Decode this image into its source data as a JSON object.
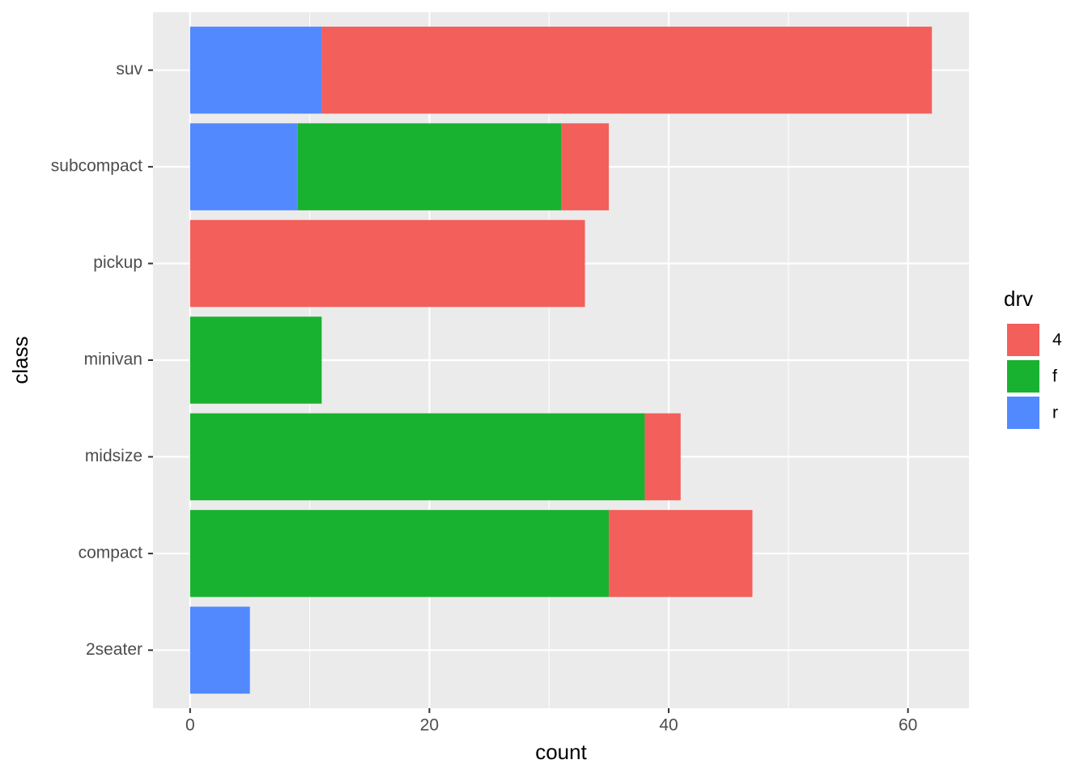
{
  "chart_data": {
    "type": "bar",
    "orientation": "horizontal",
    "stacked": true,
    "x_label": "count",
    "y_label": "class",
    "legend_title": "drv",
    "legend_position": "right",
    "categories": [
      "2seater",
      "compact",
      "midsize",
      "minivan",
      "pickup",
      "subcompact",
      "suv"
    ],
    "series": [
      {
        "name": "4",
        "color": "#F35F5B",
        "values": [
          0,
          12,
          3,
          0,
          33,
          4,
          51
        ]
      },
      {
        "name": "f",
        "color": "#19B230",
        "values": [
          0,
          35,
          38,
          11,
          0,
          22,
          0
        ]
      },
      {
        "name": "r",
        "color": "#5289FF",
        "values": [
          5,
          0,
          0,
          0,
          0,
          9,
          11
        ]
      }
    ],
    "xlim": [
      -3.1,
      65.1
    ],
    "xticks": [
      0,
      20,
      40,
      60
    ],
    "grid": true
  }
}
